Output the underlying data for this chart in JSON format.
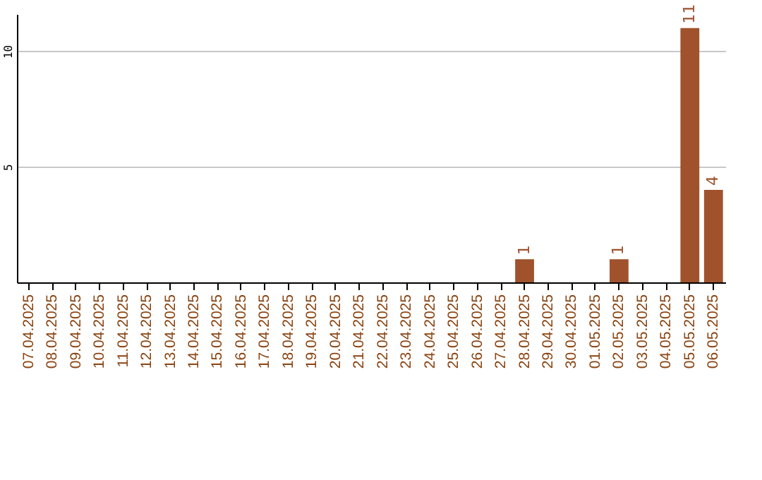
{
  "chart_data": {
    "type": "bar",
    "categories": [
      "07.04.2025",
      "08.04.2025",
      "09.04.2025",
      "10.04.2025",
      "11.04.2025",
      "12.04.2025",
      "13.04.2025",
      "14.04.2025",
      "15.04.2025",
      "16.04.2025",
      "17.04.2025",
      "18.04.2025",
      "19.04.2025",
      "20.04.2025",
      "21.04.2025",
      "22.04.2025",
      "23.04.2025",
      "24.04.2025",
      "25.04.2025",
      "26.04.2025",
      "27.04.2025",
      "28.04.2025",
      "29.04.2025",
      "30.04.2025",
      "01.05.2025",
      "02.05.2025",
      "03.05.2025",
      "04.05.2025",
      "05.05.2025",
      "06.05.2025"
    ],
    "values": [
      0,
      0,
      0,
      0,
      0,
      0,
      0,
      0,
      0,
      0,
      0,
      0,
      0,
      0,
      0,
      0,
      0,
      0,
      0,
      0,
      0,
      1,
      0,
      0,
      0,
      1,
      0,
      0,
      11,
      4
    ],
    "value_labels": [
      null,
      null,
      null,
      null,
      null,
      null,
      null,
      null,
      null,
      null,
      null,
      null,
      null,
      null,
      null,
      null,
      null,
      null,
      null,
      null,
      null,
      "1",
      null,
      null,
      null,
      "1",
      null,
      null,
      "11",
      "4"
    ],
    "color": "#a0522d",
    "ylim": [
      0,
      11.6
    ],
    "yticks": [
      5,
      10
    ],
    "grid": "y"
  }
}
